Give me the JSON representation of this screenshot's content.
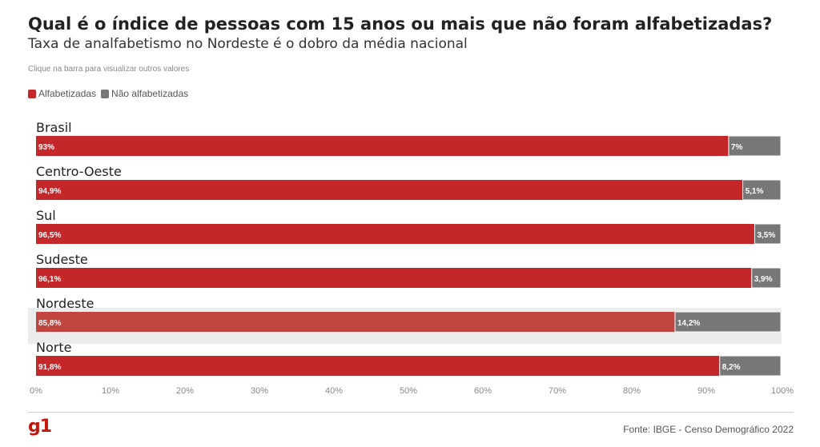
{
  "header": {
    "title": "Qual é o índice de pessoas com 15 anos ou mais que não foram alfabetizadas?",
    "subtitle": "Taxa de analfabetismo no Nordeste é o dobro da média nacional",
    "hint": "Clique na barra para visualizar outros valores"
  },
  "legend": {
    "literate": "Alfabetizadas",
    "illiterate": "Não alfabetizadas"
  },
  "colors": {
    "literate": "#c4272a",
    "literate_dim": "#c0443f",
    "illiterate": "#777777",
    "highlight_row": "#ececec",
    "brand": "#c4170c"
  },
  "chart_data": {
    "type": "bar",
    "orientation": "horizontal",
    "stacked": true,
    "title": "Qual é o índice de pessoas com 15 anos ou mais que não foram alfabetizadas?",
    "subtitle": "Taxa de analfabetismo no Nordeste é o dobro da média nacional",
    "categories": [
      "Brasil",
      "Centro-Oeste",
      "Sul",
      "Sudeste",
      "Nordeste",
      "Norte"
    ],
    "series": [
      {
        "name": "Alfabetizadas",
        "values": [
          93,
          94.9,
          96.5,
          96.1,
          85.8,
          91.8
        ],
        "labels": [
          "93%",
          "94,9%",
          "96,5%",
          "96,1%",
          "85,8%",
          "91,8%"
        ]
      },
      {
        "name": "Não alfabetizadas",
        "values": [
          7,
          5.1,
          3.5,
          3.9,
          14.2,
          8.2
        ],
        "labels": [
          "7%",
          "5,1%",
          "3,5%",
          "3,9%",
          "14,2%",
          "8,2%"
        ]
      }
    ],
    "highlighted_category": "Nordeste",
    "xlim": [
      0,
      100
    ],
    "xticks": [
      "0%",
      "10%",
      "20%",
      "30%",
      "40%",
      "50%",
      "60%",
      "70%",
      "80%",
      "90%",
      "100%"
    ],
    "legend_position": "top-left",
    "grid": false
  },
  "footer": {
    "logo": "g1",
    "source": "Fonte: IBGE - Censo Demográfico 2022"
  }
}
